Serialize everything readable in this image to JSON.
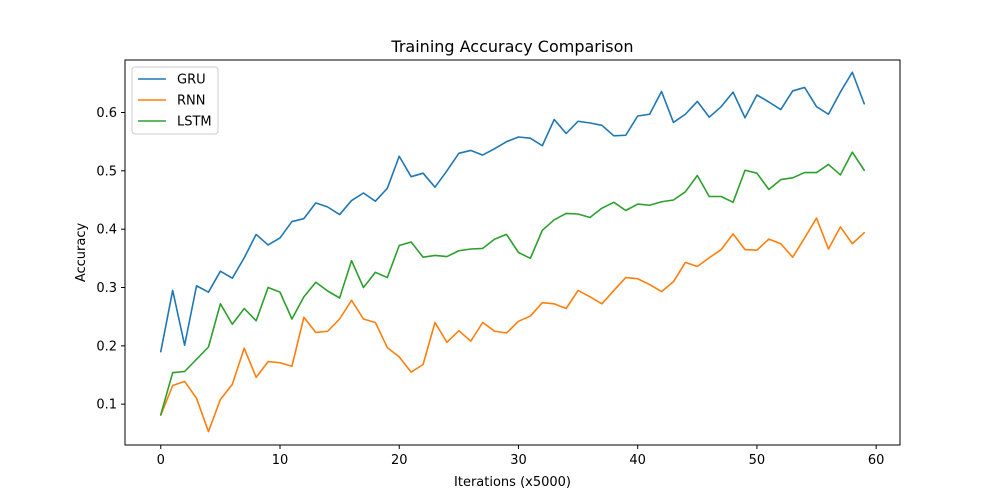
{
  "chart_data": {
    "type": "line",
    "title": "Training Accuracy Comparison",
    "xlabel": "Iterations (x5000)",
    "ylabel": "Accuracy",
    "xlim": [
      -3,
      62
    ],
    "ylim": [
      0.03,
      0.69
    ],
    "xticks": [
      0,
      10,
      20,
      30,
      40,
      50,
      60
    ],
    "yticks": [
      0.1,
      0.2,
      0.3,
      0.4,
      0.5,
      0.6
    ],
    "grid": false,
    "legend_position": "top-left",
    "x": [
      0,
      1,
      2,
      3,
      4,
      5,
      6,
      7,
      8,
      9,
      10,
      11,
      12,
      13,
      14,
      15,
      16,
      17,
      18,
      19,
      20,
      21,
      22,
      23,
      24,
      25,
      26,
      27,
      28,
      29,
      30,
      31,
      32,
      33,
      34,
      35,
      36,
      37,
      38,
      39,
      40,
      41,
      42,
      43,
      44,
      45,
      46,
      47,
      48,
      49,
      50,
      51,
      52,
      53,
      54,
      55,
      56,
      57,
      58,
      59
    ],
    "series": [
      {
        "name": "GRU",
        "color": "#1f77b4",
        "values": [
          0.19,
          0.295,
          0.201,
          0.303,
          0.292,
          0.328,
          0.316,
          0.351,
          0.391,
          0.373,
          0.385,
          0.413,
          0.418,
          0.445,
          0.438,
          0.425,
          0.449,
          0.462,
          0.448,
          0.47,
          0.525,
          0.49,
          0.496,
          0.472,
          0.5,
          0.53,
          0.535,
          0.527,
          0.538,
          0.55,
          0.558,
          0.556,
          0.543,
          0.588,
          0.564,
          0.585,
          0.582,
          0.578,
          0.56,
          0.561,
          0.594,
          0.597,
          0.636,
          0.583,
          0.597,
          0.619,
          0.592,
          0.61,
          0.635,
          0.591,
          0.63,
          0.618,
          0.605,
          0.637,
          0.643,
          0.61,
          0.597,
          0.635,
          0.669,
          0.615
        ]
      },
      {
        "name": "RNN",
        "color": "#ff7f0e",
        "values": [
          0.081,
          0.132,
          0.139,
          0.11,
          0.053,
          0.108,
          0.134,
          0.196,
          0.146,
          0.173,
          0.171,
          0.165,
          0.249,
          0.223,
          0.225,
          0.246,
          0.278,
          0.246,
          0.24,
          0.197,
          0.181,
          0.155,
          0.168,
          0.24,
          0.206,
          0.226,
          0.208,
          0.24,
          0.225,
          0.222,
          0.242,
          0.251,
          0.274,
          0.272,
          0.264,
          0.295,
          0.284,
          0.272,
          0.295,
          0.317,
          0.315,
          0.305,
          0.293,
          0.31,
          0.343,
          0.336,
          0.351,
          0.365,
          0.392,
          0.365,
          0.364,
          0.383,
          0.375,
          0.352,
          0.385,
          0.419,
          0.366,
          0.404,
          0.375,
          0.394
        ]
      },
      {
        "name": "LSTM",
        "color": "#2ca02c",
        "values": [
          0.082,
          0.154,
          0.156,
          0.177,
          0.198,
          0.272,
          0.237,
          0.264,
          0.243,
          0.3,
          0.292,
          0.246,
          0.284,
          0.309,
          0.294,
          0.282,
          0.346,
          0.3,
          0.326,
          0.317,
          0.372,
          0.378,
          0.352,
          0.355,
          0.353,
          0.363,
          0.366,
          0.367,
          0.383,
          0.391,
          0.36,
          0.35,
          0.398,
          0.416,
          0.427,
          0.426,
          0.42,
          0.436,
          0.446,
          0.432,
          0.443,
          0.441,
          0.447,
          0.45,
          0.464,
          0.492,
          0.456,
          0.456,
          0.446,
          0.501,
          0.496,
          0.468,
          0.485,
          0.488,
          0.497,
          0.497,
          0.511,
          0.493,
          0.532,
          0.501
        ]
      }
    ]
  }
}
